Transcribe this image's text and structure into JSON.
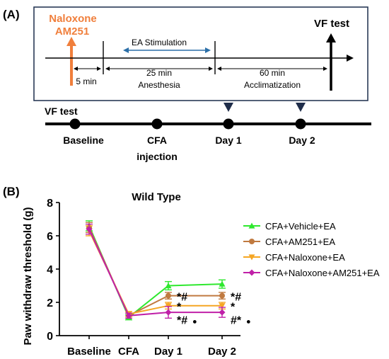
{
  "panel_a": {
    "label": "(A)",
    "drug_line1": "Naloxone",
    "drug_line2": "AM251",
    "vf_test_top": "VF test",
    "ea_stimulation": "EA Stimulation",
    "five_min": "5 min",
    "twentyfive_min": "25 min",
    "anesthesia": "Anesthesia",
    "sixty_min": "60 min",
    "acclimatization": "Acclimatization",
    "vf_test_left": "VF test",
    "timeline": [
      "Baseline",
      "CFA",
      "injection",
      "Day 1",
      "Day 2"
    ],
    "colors": {
      "drug": "#f07f3c",
      "ea_arrow": "#2b6fa8",
      "triangle": "#1f2d4a"
    }
  },
  "panel_b": {
    "label": "(B)"
  },
  "chart_data": {
    "type": "line",
    "title": "Wild Type",
    "xlabel": "",
    "ylabel": "Paw withdraw threshold (g)",
    "categories": [
      "Baseline",
      "CFA",
      "Day 1",
      "Day 2"
    ],
    "ylim": [
      0,
      8
    ],
    "yticks": [
      "0",
      "2",
      "4",
      "6",
      "8"
    ],
    "legend_position": "right",
    "series": [
      {
        "name": "CFA+Vehicle+EA",
        "color": "#2ee82e",
        "marker": "triangle-up",
        "values": [
          6.6,
          1.1,
          3.0,
          3.1
        ],
        "err": [
          0.3,
          0.15,
          0.25,
          0.25
        ]
      },
      {
        "name": "CFA+AM251+EA",
        "color": "#c07a40",
        "marker": "circle",
        "values": [
          6.5,
          1.2,
          2.4,
          2.4
        ],
        "err": [
          0.3,
          0.15,
          0.2,
          0.2
        ]
      },
      {
        "name": "CFA+Naloxone+EA",
        "color": "#f5a623",
        "marker": "triangle-down",
        "values": [
          6.3,
          1.3,
          1.8,
          1.8
        ],
        "err": [
          0.3,
          0.15,
          0.2,
          0.2
        ]
      },
      {
        "name": "CFA+Naloxone+AM251+EA",
        "color": "#c020a8",
        "marker": "diamond",
        "values": [
          6.4,
          1.2,
          1.4,
          1.4
        ],
        "err": [
          0.3,
          0.15,
          0.35,
          0.3
        ]
      }
    ],
    "annotations": [
      {
        "text": "*#",
        "category": "Day 1",
        "y": 2.4
      },
      {
        "text": "*",
        "category": "Day 1",
        "y": 1.8
      },
      {
        "text": "*#",
        "category": "Day 1",
        "y": 1.0
      },
      {
        "text": "●",
        "category": "Day 1",
        "y": 1.0
      },
      {
        "text": "*#",
        "category": "Day 2",
        "y": 2.4
      },
      {
        "text": "*",
        "category": "Day 2",
        "y": 1.8
      },
      {
        "text": "#*",
        "category": "Day 2",
        "y": 1.0
      },
      {
        "text": "●",
        "category": "Day 2",
        "y": 1.0
      }
    ]
  }
}
